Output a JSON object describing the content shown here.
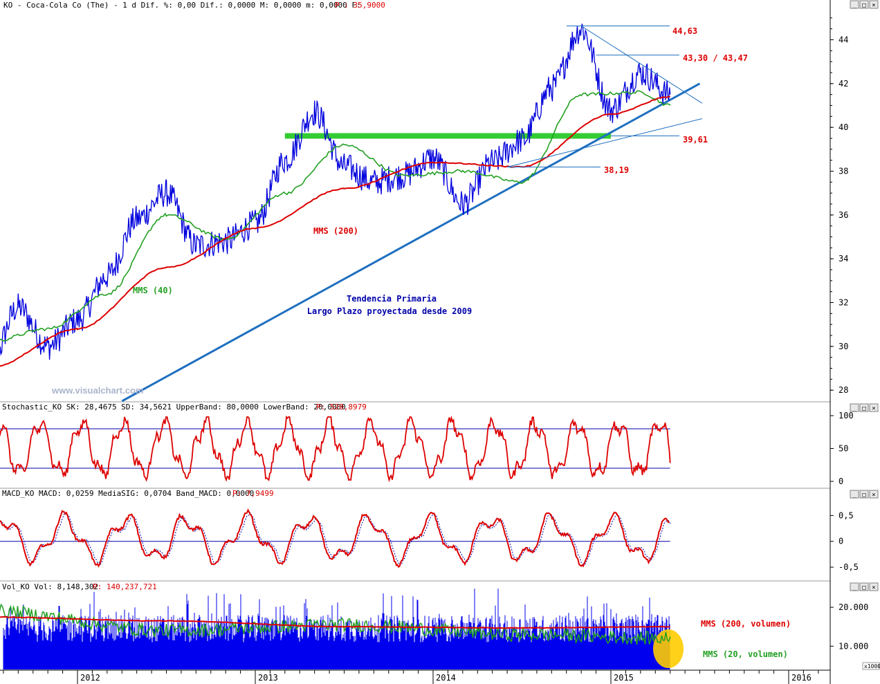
{
  "headers": {
    "main": "KO - Coca-Cola Co (The) -  1 d Dif. %: 0,00 Dif.: 0,0000 M: 0,0000 m: 0,0000 F:",
    "main_price": "P : 35,9000",
    "stochastic": "Stochastic_KO SK: 28,4675 SD: 34,5621 UpperBand: 80,0000 LowerBand: 20,0000",
    "stochastic_p": "P: 520,8979",
    "macd": "MACD_KO MACD: 0,0259 MediaSIG: 0,0704 Band_MACD: 0,0000",
    "macd_p": "P: 7,9499",
    "volume": "Vol_KO Vol: 8,148,302",
    "volume_p": "P: 140,237,721"
  },
  "window_buttons": [
    "_",
    "□",
    "×"
  ],
  "watermark": "www.visualchart.com",
  "x_axis": {
    "labels": [
      "2012",
      "2013",
      "2014",
      "2015",
      "2016"
    ]
  },
  "chart_data": [
    {
      "type": "line",
      "panel": "price",
      "x_range": [
        "2011-07",
        "2016-04"
      ],
      "ylim": [
        27.5,
        45.5
      ],
      "y_ticks": [
        "28",
        "30",
        "32",
        "34",
        "36",
        "38",
        "40",
        "42",
        "44"
      ],
      "series": [
        {
          "name": "",
          "color": "#0000dd",
          "x": [
            "2011-07",
            "2011-09",
            "2011-11",
            "2012-01",
            "2012-03",
            "2012-05",
            "2012-07",
            "2012-09",
            "2012-11",
            "2013-01",
            "2013-03",
            "2013-05",
            "2013-07",
            "2013-09",
            "2013-11",
            "2014-01",
            "2014-03",
            "2014-05",
            "2014-07",
            "2014-09",
            "2014-11",
            "2015-01",
            "2015-03",
            "2015-05"
          ],
          "y": [
            28.9,
            31.8,
            30.0,
            31.2,
            33.2,
            35.8,
            37.0,
            34.6,
            34.8,
            35.6,
            38.5,
            40.7,
            38.2,
            37.5,
            37.8,
            38.6,
            36.5,
            38.4,
            39.4,
            41.8,
            44.5,
            40.8,
            42.5,
            41.5
          ]
        },
        {
          "name": "MMS (40)",
          "color": "#22a022",
          "x": [
            "2011-07",
            "2011-11",
            "2012-03",
            "2012-07",
            "2012-11",
            "2013-03",
            "2013-07",
            "2013-11",
            "2014-03",
            "2014-07",
            "2014-11",
            "2015-03",
            "2015-05"
          ],
          "y": [
            30.2,
            30.8,
            32.4,
            36.0,
            34.9,
            37.0,
            39.2,
            37.8,
            38.0,
            37.5,
            41.5,
            41.6,
            41.0
          ]
        },
        {
          "name": "MMS (200)",
          "color": "#dd0000",
          "x": [
            "2011-07",
            "2012-01",
            "2012-07",
            "2013-01",
            "2013-07",
            "2014-01",
            "2014-07",
            "2015-01",
            "2015-05"
          ],
          "y": [
            29.0,
            30.8,
            33.6,
            35.4,
            37.2,
            38.4,
            38.2,
            40.6,
            41.4
          ]
        }
      ],
      "annotations": [
        {
          "text": "44,63",
          "y": 44.63
        },
        {
          "text": "43,30 / 43,47",
          "y": 43.3
        },
        {
          "text": "39,61",
          "y": 39.61
        },
        {
          "text": "38,19",
          "y": 38.19
        },
        {
          "text": "MMS (200)"
        },
        {
          "text": "MMS (40)"
        },
        {
          "text": "Tendencia Primaria"
        },
        {
          "text": "Largo Plazo proyectada desde 2009"
        }
      ],
      "support_zone": {
        "y": 39.61,
        "x_from": "2013-03",
        "x_to": "2015-01"
      },
      "trendline": {
        "x0": "2012-04",
        "y0": 27.5,
        "x1": "2015-07",
        "y1": 42.0
      }
    },
    {
      "type": "line",
      "panel": "stochastic",
      "ylim": [
        0,
        100
      ],
      "y_ticks": [
        "0",
        "50",
        "100"
      ],
      "bands": [
        20,
        80
      ],
      "series": [
        {
          "name": "",
          "color": "#dd0000",
          "x": [
            "2011-07",
            "2011-11",
            "2012-03",
            "2012-07",
            "2012-11",
            "2013-03",
            "2013-07",
            "2013-11",
            "2014-03",
            "2014-07",
            "2014-11",
            "2015-03",
            "2015-05"
          ],
          "y": [
            40,
            85,
            20,
            90,
            15,
            88,
            10,
            80,
            12,
            92,
            8,
            85,
            28
          ]
        }
      ]
    },
    {
      "type": "line",
      "panel": "macd",
      "ylim": [
        -0.7,
        0.8
      ],
      "y_ticks": [
        "0,5",
        "0",
        "-0,5"
      ],
      "series": [
        {
          "name": "",
          "color": "#dd0000",
          "x": [
            "2011-07",
            "2011-11",
            "2012-03",
            "2012-07",
            "2012-11",
            "2013-03",
            "2013-07",
            "2013-11",
            "2014-03",
            "2014-07",
            "2014-11",
            "2015-03",
            "2015-05"
          ],
          "y": [
            0.1,
            -0.2,
            0.5,
            -0.4,
            0.1,
            0.78,
            -0.55,
            0.4,
            -0.65,
            0.45,
            0.75,
            -0.5,
            0.03
          ]
        }
      ]
    },
    {
      "type": "bar",
      "panel": "volume",
      "ylim": [
        4000,
        25000
      ],
      "y_ticks": [
        "20.000",
        "10.000"
      ],
      "y_unit_label": "x1000",
      "series": [
        {
          "name": "MMS (200, volumen)",
          "color": "#dd0000",
          "x": [
            "2011-07",
            "2012-07",
            "2013-07",
            "2014-07",
            "2015-05"
          ],
          "y": [
            17500,
            16500,
            15000,
            14700,
            15000
          ]
        },
        {
          "name": "MMS (20, volumen)",
          "color": "#22a022",
          "x": [
            "2011-07",
            "2012-07",
            "2013-07",
            "2014-07",
            "2015-05"
          ],
          "y": [
            19000,
            14000,
            15500,
            13000,
            12000
          ]
        }
      ]
    }
  ]
}
